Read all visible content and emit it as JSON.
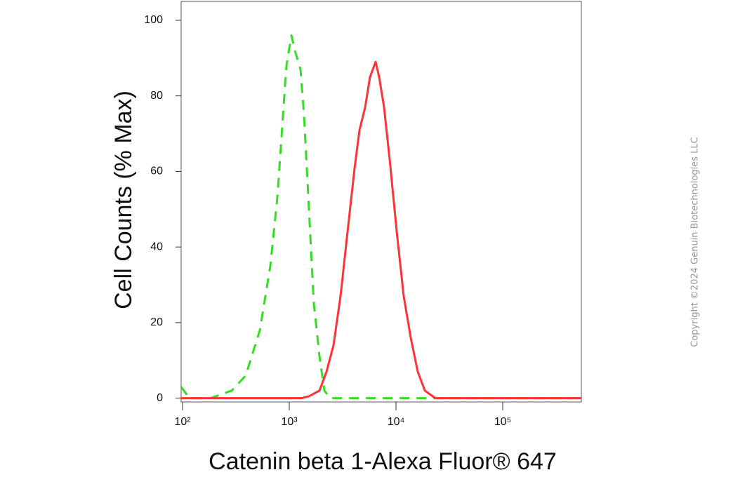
{
  "chart_data": {
    "type": "line",
    "x_label": "Catenin beta 1-Alexa Fluor® 647",
    "y_label": "Cell Counts (% Max)",
    "watermark": "Copyright ©2024 Genuin Biotechnologies LLC",
    "x_log": true,
    "xlim": [
      97,
      545000
    ],
    "xticks": [
      {
        "value": 100,
        "label": "10²"
      },
      {
        "value": 1000,
        "label": "10³"
      },
      {
        "value": 10000,
        "label": "10⁴"
      },
      {
        "value": 100000,
        "label": "10⁵"
      }
    ],
    "ylim": [
      -1,
      105
    ],
    "yticks": [
      0,
      20,
      40,
      60,
      80,
      100
    ],
    "grid": false,
    "series": [
      {
        "color": "#33dd22",
        "dashed": true,
        "x": [
          97,
          116,
          183,
          289,
          391,
          530,
          664,
          773,
          873,
          941,
          1047,
          1129,
          1274,
          1374,
          1528,
          1699,
          1919,
          2133,
          2410,
          3793,
          545000
        ],
        "values": [
          3,
          0,
          0,
          2,
          6,
          18,
          35,
          53,
          75,
          88,
          96,
          92,
          87,
          75,
          50,
          25,
          11,
          2,
          0,
          0,
          0
        ]
      },
      {
        "color": "#ff3333",
        "dashed": false,
        "x": [
          97,
          1313,
          1528,
          1919,
          2233,
          2596,
          3020,
          3516,
          4093,
          4550,
          5140,
          5710,
          6440,
          6950,
          7730,
          8730,
          10160,
          11810,
          13740,
          15990,
          18620,
          23340,
          545000
        ],
        "values": [
          0,
          0,
          0.5,
          2,
          7,
          14,
          27,
          44,
          61,
          71,
          77,
          85,
          89,
          85,
          77,
          63,
          44,
          27,
          16,
          7,
          2,
          0,
          0
        ]
      }
    ]
  }
}
